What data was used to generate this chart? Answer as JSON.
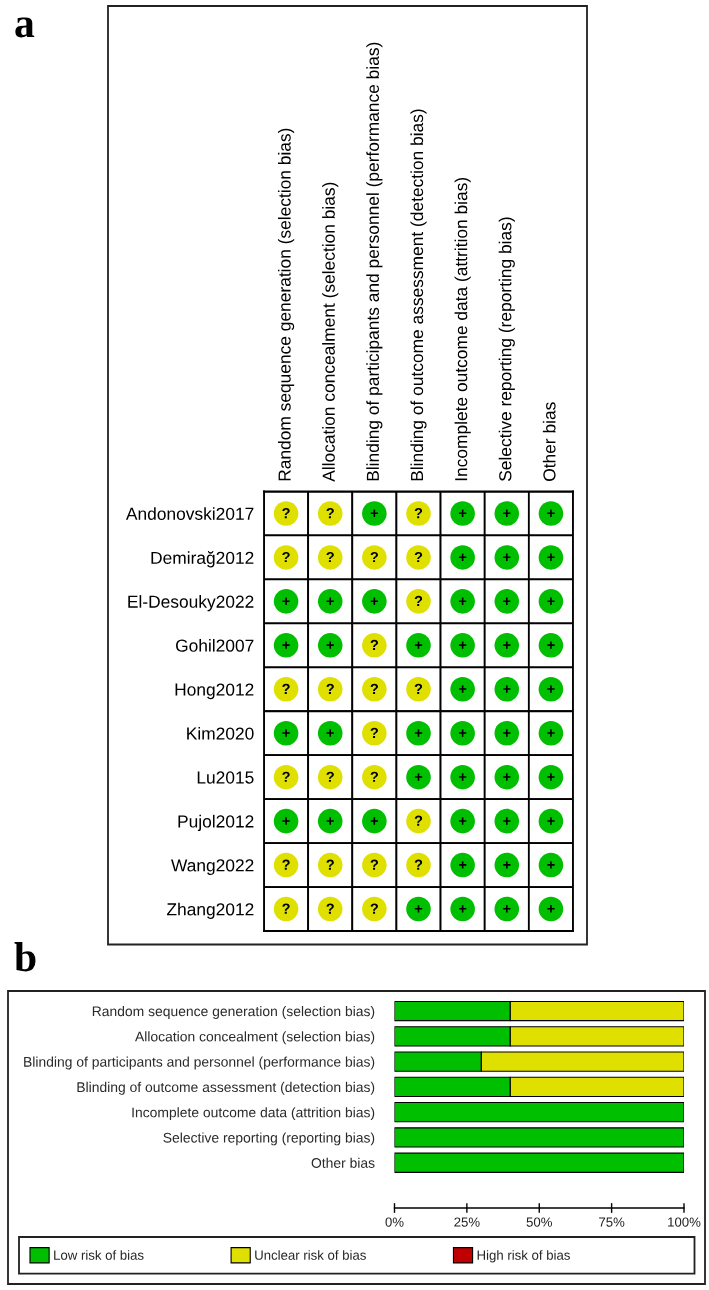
{
  "chart_data": [
    {
      "type": "heatmap",
      "title": "a",
      "categories": [
        "Random sequence generation (selection bias)",
        "Allocation concealment (selection bias)",
        "Blinding of participants and personnel (performance bias)",
        "Blinding of outcome assessment (detection bias)",
        "Incomplete outcome data (attrition bias)",
        "Selective reporting (reporting bias)",
        "Other bias"
      ],
      "y_categories": [
        "Andonovski2017",
        "Demirağ2012",
        "El-Desouky2022",
        "Gohil2007",
        "Hong2012",
        "Kim2020",
        "Lu2015",
        "Pujol2012",
        "Wang2022",
        "Zhang2012"
      ],
      "cells": [
        [
          "?",
          "?",
          "+",
          "?",
          "+",
          "+",
          "+"
        ],
        [
          "?",
          "?",
          "?",
          "?",
          "+",
          "+",
          "+"
        ],
        [
          "+",
          "+",
          "+",
          "?",
          "+",
          "+",
          "+"
        ],
        [
          "+",
          "+",
          "?",
          "+",
          "+",
          "+",
          "+"
        ],
        [
          "?",
          "?",
          "?",
          "?",
          "+",
          "+",
          "+"
        ],
        [
          "+",
          "+",
          "?",
          "+",
          "+",
          "+",
          "+"
        ],
        [
          "?",
          "?",
          "?",
          "+",
          "+",
          "+",
          "+"
        ],
        [
          "+",
          "+",
          "+",
          "?",
          "+",
          "+",
          "+"
        ],
        [
          "?",
          "?",
          "?",
          "?",
          "+",
          "+",
          "+"
        ],
        [
          "?",
          "?",
          "?",
          "+",
          "+",
          "+",
          "+"
        ]
      ],
      "colors": [
        [
          "#e0e000",
          "#e0e000",
          "#00bf00",
          "#e0e000",
          "#00bf00",
          "#00bf00",
          "#00bf00"
        ],
        [
          "#e0e000",
          "#e0e000",
          "#e0e000",
          "#e0e000",
          "#00bf00",
          "#00bf00",
          "#00bf00"
        ],
        [
          "#00bf00",
          "#00bf00",
          "#00bf00",
          "#e0e000",
          "#00bf00",
          "#00bf00",
          "#00bf00"
        ],
        [
          "#00bf00",
          "#00bf00",
          "#e0e000",
          "#00bf00",
          "#00bf00",
          "#00bf00",
          "#00bf00"
        ],
        [
          "#e0e000",
          "#e0e000",
          "#e0e000",
          "#e0e000",
          "#00bf00",
          "#00bf00",
          "#00bf00"
        ],
        [
          "#00bf00",
          "#00bf00",
          "#e0e000",
          "#00bf00",
          "#00bf00",
          "#00bf00",
          "#00bf00"
        ],
        [
          "#e0e000",
          "#e0e000",
          "#e0e000",
          "#00bf00",
          "#00bf00",
          "#00bf00",
          "#00bf00"
        ],
        [
          "#00bf00",
          "#00bf00",
          "#00bf00",
          "#e0e000",
          "#00bf00",
          "#00bf00",
          "#00bf00"
        ],
        [
          "#e0e000",
          "#e0e000",
          "#e0e000",
          "#e0e000",
          "#00bf00",
          "#00bf00",
          "#00bf00"
        ],
        [
          "#e0e000",
          "#e0e000",
          "#e0e000",
          "#00bf00",
          "#00bf00",
          "#00bf00",
          "#00bf00"
        ]
      ]
    },
    {
      "type": "bar",
      "title": "b",
      "orientation": "horizontal",
      "stacked": true,
      "categories": [
        "Random sequence generation (selection bias)",
        "Allocation concealment (selection bias)",
        "Blinding of participants and personnel (performance bias)",
        "Blinding of outcome assessment (detection bias)",
        "Incomplete outcome data (attrition bias)",
        "Selective reporting (reporting bias)",
        "Other bias"
      ],
      "series": [
        {
          "name": "Low risk of bias",
          "color": "#00bf00",
          "values": [
            40,
            40,
            30,
            40,
            100,
            100,
            100
          ]
        },
        {
          "name": "Unclear risk of bias",
          "color": "#e0e000",
          "values": [
            60,
            60,
            70,
            60,
            0,
            0,
            0
          ]
        },
        {
          "name": "High risk of bias",
          "color": "#c00000",
          "values": [
            0,
            0,
            0,
            0,
            0,
            0,
            0
          ]
        }
      ],
      "xlim": [
        0,
        100
      ],
      "xticks": [
        {
          "value": 0,
          "label": "0%"
        },
        {
          "value": 25,
          "label": "25%"
        },
        {
          "value": 50,
          "label": "50%"
        },
        {
          "value": 75,
          "label": "75%"
        },
        {
          "value": 100,
          "label": "100%"
        }
      ],
      "legend": "bottom"
    }
  ]
}
